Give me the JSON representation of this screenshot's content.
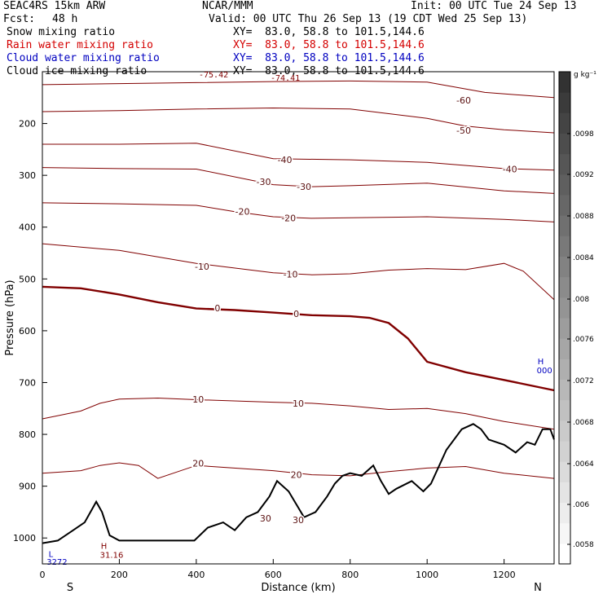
{
  "header": {
    "model": "SEAC4RS 15km ARW",
    "center": "NCAR/MMM",
    "init": "Init: 00 UTC Tue 24 Sep 13",
    "fcst_label": "Fcst:",
    "fcst_value": "48 h",
    "valid": "Valid: 00 UTC Thu 26 Sep 13 (19 CDT Wed 25 Sep 13)"
  },
  "legend": [
    {
      "label": "Snow mixing ratio",
      "xy": "XY=  83.0, 58.8 to 101.5,144.6",
      "color": "#000000"
    },
    {
      "label": "Rain water mixing ratio",
      "xy": "XY=  83.0, 58.8 to 101.5,144.6",
      "color": "#d40000"
    },
    {
      "label": "Cloud water mixing ratio",
      "xy": "XY=  83.0, 58.8 to 101.5,144.6",
      "color": "#0000c0"
    },
    {
      "label": "Cloud ice mixing ratio",
      "xy": "XY=  83.0, 58.8 to 101.5,144.6",
      "color": "#000000"
    }
  ],
  "overlapping_text": {
    "top_value": "-75.42",
    "top_low": "-74.41"
  },
  "colorbar": {
    "unit": "g kg⁻¹",
    "ticks": [
      ".0058",
      ".006",
      ".0064",
      ".0068",
      ".0072",
      ".0076",
      ".008",
      ".0084",
      ".0088",
      ".0092",
      ".0098"
    ]
  },
  "chart_data": {
    "type": "line",
    "xlabel": "Distance (km)",
    "ylabel": "Pressure (hPa)",
    "xlim": [
      0,
      1330
    ],
    "ylim": [
      1050,
      100
    ],
    "y_scale": "linear-inverted",
    "x_ticks": [
      "0",
      "200",
      "400",
      "600",
      "800",
      "1000",
      "1200"
    ],
    "y_ticks": [
      "200",
      "300",
      "400",
      "500",
      "600",
      "700",
      "800",
      "900",
      "1000"
    ],
    "x_end_labels": {
      "left": "S",
      "right": "N"
    },
    "contour_color": "#800000",
    "terrain_color": "#000000",
    "contour_labels": [
      {
        "text": "-60",
        "x": 1095,
        "p": 155
      },
      {
        "text": "-50",
        "x": 1095,
        "p": 213
      },
      {
        "text": "-40",
        "x": 630,
        "p": 270
      },
      {
        "text": "-40",
        "x": 1215,
        "p": 288
      },
      {
        "text": "-30",
        "x": 575,
        "p": 312
      },
      {
        "text": "-30",
        "x": 680,
        "p": 322
      },
      {
        "text": "-20",
        "x": 520,
        "p": 370
      },
      {
        "text": "-20",
        "x": 640,
        "p": 382
      },
      {
        "text": "-10",
        "x": 415,
        "p": 476
      },
      {
        "text": "-10",
        "x": 645,
        "p": 491
      },
      {
        "text": "0",
        "x": 455,
        "p": 556
      },
      {
        "text": "0",
        "x": 660,
        "p": 567
      },
      {
        "text": "10",
        "x": 405,
        "p": 732
      },
      {
        "text": "10",
        "x": 665,
        "p": 740
      },
      {
        "text": "20",
        "x": 405,
        "p": 856
      },
      {
        "text": "20",
        "x": 660,
        "p": 878
      },
      {
        "text": "30",
        "x": 580,
        "p": 962
      },
      {
        "text": "30",
        "x": 665,
        "p": 965
      }
    ],
    "markers": [
      {
        "text": "L",
        "x": 22,
        "p": 1030,
        "color": "#0000c0"
      },
      {
        "text": "3272",
        "x": 38,
        "p": 1045,
        "color": "#0000c0"
      },
      {
        "text": "H",
        "x": 160,
        "p": 1015,
        "color": "#800000"
      },
      {
        "text": "31.16",
        "x": 180,
        "p": 1032,
        "color": "#800000"
      },
      {
        "text": "H",
        "x": 1295,
        "p": 658,
        "color": "#0000c0"
      },
      {
        "text": "000",
        "x": 1305,
        "p": 676,
        "color": "#0000c0"
      }
    ],
    "series": [
      {
        "name": "-60",
        "x": [
          0,
          200,
          400,
          600,
          800,
          1000,
          1150,
          1330
        ],
        "y": [
          125,
          123,
          121,
          119,
          118,
          120,
          140,
          150
        ],
        "bold": false
      },
      {
        "name": "-50",
        "x": [
          0,
          200,
          400,
          600,
          800,
          1000,
          1100,
          1200,
          1330
        ],
        "y": [
          177,
          175,
          172,
          170,
          172,
          190,
          205,
          212,
          218
        ],
        "bold": false
      },
      {
        "name": "-40",
        "x": [
          0,
          200,
          400,
          600,
          800,
          1000,
          1200,
          1330
        ],
        "y": [
          240,
          240,
          238,
          268,
          270,
          275,
          287,
          290
        ],
        "bold": false
      },
      {
        "name": "-30",
        "x": [
          0,
          200,
          400,
          600,
          700,
          800,
          1000,
          1200,
          1330
        ],
        "y": [
          285,
          287,
          288,
          318,
          322,
          320,
          315,
          330,
          335
        ],
        "bold": false
      },
      {
        "name": "-20",
        "x": [
          0,
          200,
          400,
          500,
          600,
          700,
          800,
          1000,
          1200,
          1330
        ],
        "y": [
          353,
          355,
          358,
          370,
          380,
          383,
          382,
          380,
          385,
          390
        ],
        "bold": false
      },
      {
        "name": "-10",
        "x": [
          0,
          200,
          400,
          600,
          700,
          800,
          900,
          1000,
          1100,
          1200,
          1250,
          1330
        ],
        "y": [
          432,
          445,
          470,
          488,
          492,
          490,
          483,
          480,
          482,
          470,
          485,
          540
        ],
        "bold": false
      },
      {
        "name": "0",
        "x": [
          0,
          100,
          200,
          300,
          400,
          500,
          600,
          700,
          800,
          850,
          900,
          950,
          1000,
          1100,
          1200,
          1330
        ],
        "y": [
          515,
          518,
          530,
          545,
          557,
          560,
          565,
          570,
          572,
          575,
          585,
          615,
          660,
          680,
          695,
          715
        ],
        "bold": true
      },
      {
        "name": "10",
        "x": [
          0,
          100,
          150,
          200,
          300,
          400,
          600,
          700,
          800,
          900,
          1000,
          1100,
          1200,
          1330
        ],
        "y": [
          770,
          755,
          740,
          732,
          730,
          733,
          738,
          740,
          745,
          752,
          750,
          760,
          775,
          790
        ],
        "bold": false
      },
      {
        "name": "20",
        "x": [
          0,
          100,
          150,
          200,
          250,
          300,
          400,
          600,
          700,
          800,
          900,
          1000,
          1100,
          1200,
          1330
        ],
        "y": [
          875,
          870,
          860,
          855,
          860,
          885,
          860,
          870,
          878,
          880,
          872,
          865,
          862,
          875,
          885
        ],
        "bold": false
      }
    ],
    "terrain": {
      "x": [
        0,
        40,
        80,
        110,
        140,
        155,
        175,
        200,
        250,
        300,
        350,
        395,
        430,
        470,
        500,
        530,
        560,
        590,
        610,
        640,
        680,
        710,
        740,
        760,
        780,
        800,
        830,
        860,
        880,
        900,
        920,
        960,
        990,
        1010,
        1050,
        1090,
        1120,
        1140,
        1160,
        1200,
        1230,
        1260,
        1280,
        1300,
        1320,
        1330
      ],
      "y": [
        1010,
        1005,
        985,
        970,
        930,
        950,
        995,
        1005,
        1005,
        1005,
        1005,
        1005,
        980,
        970,
        985,
        960,
        950,
        920,
        890,
        910,
        960,
        950,
        920,
        895,
        880,
        875,
        880,
        860,
        890,
        915,
        905,
        890,
        910,
        895,
        830,
        790,
        780,
        790,
        810,
        820,
        835,
        815,
        820,
        790,
        790,
        810
      ]
    }
  }
}
